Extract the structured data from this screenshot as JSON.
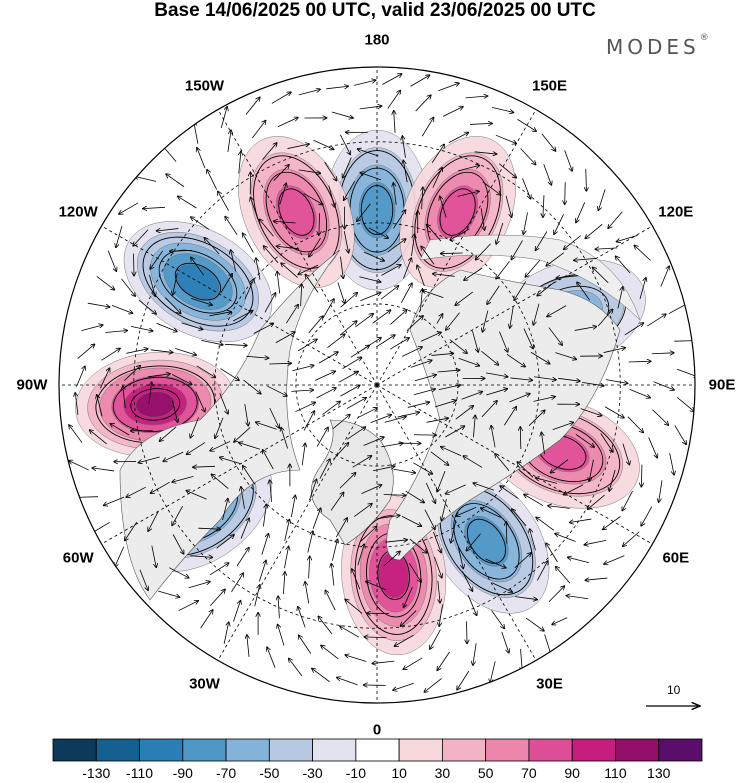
{
  "title": "Base 14/06/2025 00 UTC, valid 23/06/2025 00 UTC",
  "brand": "MODES",
  "brand_mark": "®",
  "longitude_labels": [
    {
      "text": "180",
      "deg": 180
    },
    {
      "text": "150E",
      "deg": 150
    },
    {
      "text": "120E",
      "deg": 120
    },
    {
      "text": "90E",
      "deg": 90
    },
    {
      "text": "60E",
      "deg": 60
    },
    {
      "text": "30E",
      "deg": 30
    },
    {
      "text": "0",
      "deg": 0
    },
    {
      "text": "30W",
      "deg": -30
    },
    {
      "text": "60W",
      "deg": -60
    },
    {
      "text": "90W",
      "deg": -90
    },
    {
      "text": "120W",
      "deg": -120
    },
    {
      "text": "150W",
      "deg": -150
    }
  ],
  "vector_scale": {
    "label": "10"
  },
  "colorbar": {
    "tick_labels": [
      "-130",
      "-110",
      "-90",
      "-70",
      "-50",
      "-30",
      "-10",
      "10",
      "30",
      "50",
      "70",
      "90",
      "110",
      "130"
    ],
    "colors": [
      "#0b3a5a",
      "#135f8f",
      "#2a7fb6",
      "#4e98c8",
      "#84b3d9",
      "#b6c8e2",
      "#e3e2ef",
      "#ffffff",
      "#f7d8dc",
      "#f2b4c4",
      "#ec86ad",
      "#df4f98",
      "#c51e7f",
      "#92106a",
      "#5b0d6b"
    ]
  },
  "map_data": {
    "projection": "north polar stereographic",
    "anomalies": [
      {
        "lon": 180,
        "r": 0.55,
        "value": -70
      },
      {
        "lon": 155,
        "r": 0.6,
        "value": 70
      },
      {
        "lon": 110,
        "r": 0.64,
        "value": -50
      },
      {
        "lon": 70,
        "r": 0.62,
        "value": 70
      },
      {
        "lon": 35,
        "r": 0.6,
        "value": -70
      },
      {
        "lon": 5,
        "r": 0.6,
        "value": 90
      },
      {
        "lon": -55,
        "r": 0.68,
        "value": -70
      },
      {
        "lon": -85,
        "r": 0.7,
        "value": 110
      },
      {
        "lon": -120,
        "r": 0.65,
        "value": -90
      },
      {
        "lon": -155,
        "r": 0.6,
        "value": 70
      }
    ]
  }
}
